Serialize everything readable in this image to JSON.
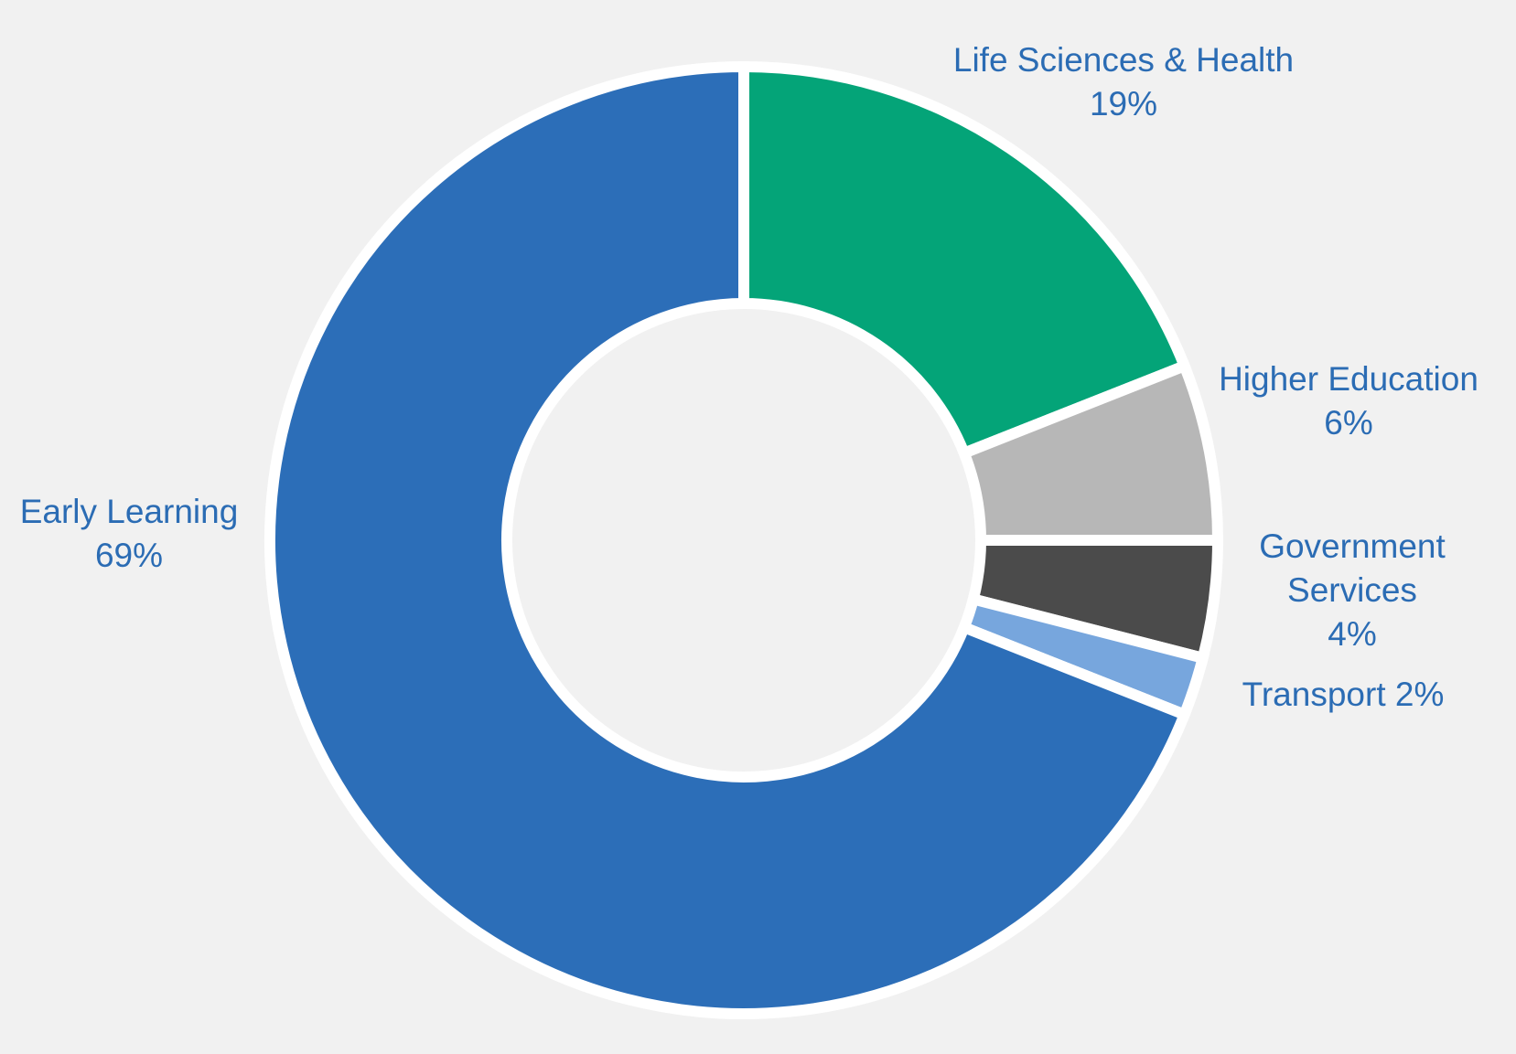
{
  "background_color": "#F1F1F1",
  "label_color": "#2B6CB4",
  "chart_data": {
    "type": "pie",
    "subtype": "donut",
    "title": "",
    "legend": "none",
    "labels_position": "outside",
    "start_angle_deg": 0,
    "direction": "clockwise",
    "inner_radius_ratio": 0.5,
    "slice_gap_color": "#FFFFFF",
    "slices": [
      {
        "label": "Life Sciences & Health",
        "value_pct": 19,
        "pct_text": "19%",
        "color": "#04A478"
      },
      {
        "label": "Higher Education",
        "value_pct": 6,
        "pct_text": "6%",
        "color": "#B7B7B7"
      },
      {
        "label": "Government Services",
        "value_pct": 4,
        "pct_text": "4%",
        "color": "#4B4B4B"
      },
      {
        "label": "Transport",
        "value_pct": 2,
        "pct_text": "2%",
        "color": "#77A6DD"
      },
      {
        "label": "Early Learning",
        "value_pct": 69,
        "pct_text": "69%",
        "color": "#2C6EB8"
      }
    ]
  }
}
